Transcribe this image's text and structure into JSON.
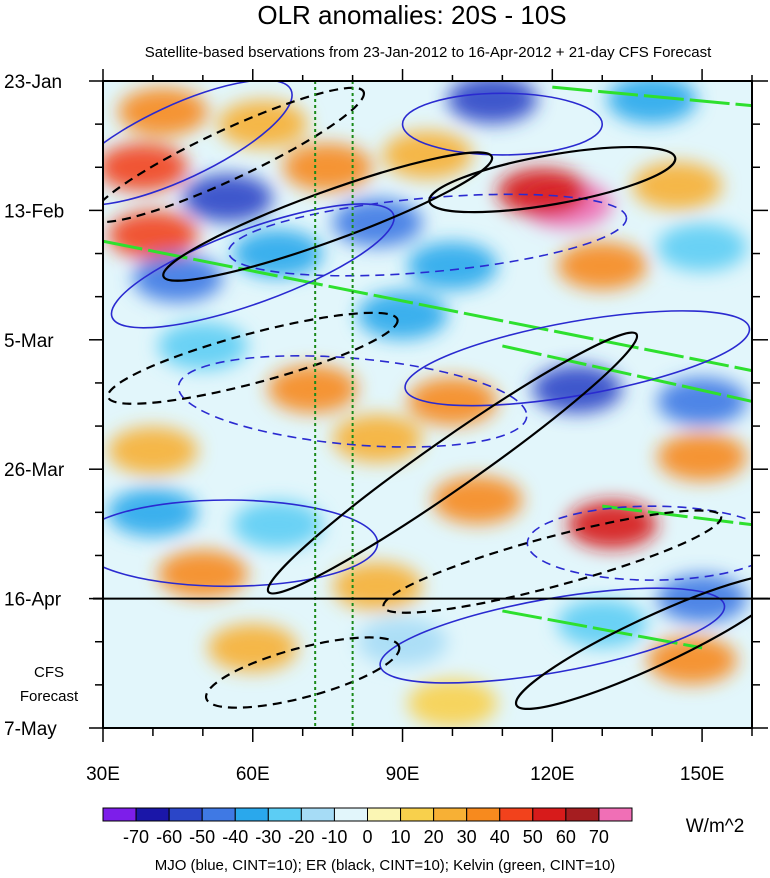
{
  "chart_data": {
    "type": "heatmap",
    "title": "OLR anomalies: 20S - 10S",
    "subtitle": "Satellite-based bservations from 23-Jan-2012 to 16-Apr-2012 + 21-day CFS Forecast",
    "xlim": [
      30,
      160
    ],
    "x_ticks": [
      30,
      60,
      90,
      120,
      150
    ],
    "x_tick_labels": [
      "30E",
      "60E",
      "90E",
      "120E",
      "150E"
    ],
    "y_tick_labels": [
      "23-Jan",
      "13-Feb",
      "5-Mar",
      "26-Mar",
      "16-Apr",
      "7-May"
    ],
    "y_tick_days": [
      0,
      21,
      42,
      63,
      84,
      105
    ],
    "forecast_start_day": 84,
    "forecast_label_line1": "CFS",
    "forecast_label_line2": "Forecast",
    "reference_lines_lon": [
      72.5,
      80
    ],
    "colorbar": {
      "levels": [
        -70,
        -60,
        -50,
        -40,
        -30,
        -20,
        -10,
        0,
        10,
        20,
        30,
        40,
        50,
        60,
        70
      ],
      "labels": [
        "-70",
        "-60",
        "-50",
        "-40",
        "-30",
        "-20",
        "-10",
        "0",
        "10",
        "20",
        "30",
        "40",
        "50",
        "60",
        "70"
      ],
      "colors": [
        "#7d1eea",
        "#1a16a8",
        "#2b46c8",
        "#3f79e4",
        "#2aa8ec",
        "#5ccdf4",
        "#a6dcf6",
        "#e2f6fb",
        "#fbf6b4",
        "#f8d04c",
        "#f7b035",
        "#f78a1e",
        "#f2421c",
        "#d71b1b",
        "#a51d20",
        "#f06fb6"
      ],
      "units": "W/m^2"
    },
    "anomaly_blobs": [
      {
        "lon": 42,
        "day": 5,
        "value": 30
      },
      {
        "lon": 62,
        "day": 7,
        "value": 20
      },
      {
        "lon": 108,
        "day": 3,
        "value": -60
      },
      {
        "lon": 140,
        "day": 3,
        "value": -40
      },
      {
        "lon": 38,
        "day": 14,
        "value": 40
      },
      {
        "lon": 55,
        "day": 19,
        "value": -60
      },
      {
        "lon": 75,
        "day": 14,
        "value": 30
      },
      {
        "lon": 95,
        "day": 12,
        "value": 20
      },
      {
        "lon": 123,
        "day": 20,
        "value": 70
      },
      {
        "lon": 118,
        "day": 18,
        "value": 50
      },
      {
        "lon": 145,
        "day": 17,
        "value": 20
      },
      {
        "lon": 40,
        "day": 25,
        "value": 40
      },
      {
        "lon": 45,
        "day": 32,
        "value": -50
      },
      {
        "lon": 65,
        "day": 28,
        "value": -40
      },
      {
        "lon": 85,
        "day": 23,
        "value": -50
      },
      {
        "lon": 100,
        "day": 30,
        "value": -40
      },
      {
        "lon": 130,
        "day": 30,
        "value": 30
      },
      {
        "lon": 150,
        "day": 27,
        "value": -30
      },
      {
        "lon": 50,
        "day": 43,
        "value": -30
      },
      {
        "lon": 90,
        "day": 38,
        "value": -40
      },
      {
        "lon": 72,
        "day": 50,
        "value": 30
      },
      {
        "lon": 100,
        "day": 52,
        "value": 30
      },
      {
        "lon": 125,
        "day": 50,
        "value": -60
      },
      {
        "lon": 150,
        "day": 52,
        "value": -50
      },
      {
        "lon": 40,
        "day": 60,
        "value": 20
      },
      {
        "lon": 85,
        "day": 58,
        "value": 20
      },
      {
        "lon": 150,
        "day": 61,
        "value": 30
      },
      {
        "lon": 40,
        "day": 70,
        "value": -40
      },
      {
        "lon": 65,
        "day": 72,
        "value": -30
      },
      {
        "lon": 105,
        "day": 68,
        "value": 30
      },
      {
        "lon": 132,
        "day": 72,
        "value": 50
      },
      {
        "lon": 50,
        "day": 80,
        "value": 30
      },
      {
        "lon": 85,
        "day": 82,
        "value": 20
      },
      {
        "lon": 130,
        "day": 88,
        "value": -30
      },
      {
        "lon": 150,
        "day": 84,
        "value": -50
      },
      {
        "lon": 60,
        "day": 92,
        "value": 20
      },
      {
        "lon": 90,
        "day": 91,
        "value": -20
      },
      {
        "lon": 148,
        "day": 94,
        "value": 30
      },
      {
        "lon": 100,
        "day": 101,
        "value": 10
      }
    ],
    "mjo_contours": [
      {
        "lon": 45,
        "day": 10,
        "rx": 25,
        "ry": 6,
        "angle": -25,
        "dashed": false
      },
      {
        "lon": 60,
        "day": 30,
        "rx": 30,
        "ry": 6,
        "angle": -20,
        "dashed": false
      },
      {
        "lon": 110,
        "day": 7,
        "rx": 20,
        "ry": 5,
        "angle": 0,
        "dashed": false
      },
      {
        "lon": 95,
        "day": 25,
        "rx": 40,
        "ry": 6,
        "angle": -5,
        "dashed": true
      },
      {
        "lon": 125,
        "day": 45,
        "rx": 35,
        "ry": 6,
        "angle": -10,
        "dashed": false
      },
      {
        "lon": 80,
        "day": 52,
        "rx": 35,
        "ry": 7,
        "angle": 5,
        "dashed": true
      },
      {
        "lon": 55,
        "day": 75,
        "rx": 30,
        "ry": 7,
        "angle": 0,
        "dashed": false
      },
      {
        "lon": 140,
        "day": 75,
        "rx": 25,
        "ry": 6,
        "angle": 0,
        "dashed": true
      },
      {
        "lon": 120,
        "day": 90,
        "rx": 35,
        "ry": 6,
        "angle": -10,
        "dashed": false
      }
    ],
    "er_contours": [
      {
        "lon": 55,
        "day": 12,
        "rx": 30,
        "ry": 4,
        "angle": -25,
        "dashed": true
      },
      {
        "lon": 75,
        "day": 22,
        "rx": 35,
        "ry": 4,
        "angle": -20,
        "dashed": false
      },
      {
        "lon": 120,
        "day": 16,
        "rx": 25,
        "ry": 4,
        "angle": -10,
        "dashed": false
      },
      {
        "lon": 60,
        "day": 45,
        "rx": 30,
        "ry": 4,
        "angle": -15,
        "dashed": true
      },
      {
        "lon": 100,
        "day": 62,
        "rx": 45,
        "ry": 4,
        "angle": -35,
        "dashed": false
      },
      {
        "lon": 70,
        "day": 96,
        "rx": 20,
        "ry": 4,
        "angle": -15,
        "dashed": true
      },
      {
        "lon": 140,
        "day": 91,
        "rx": 30,
        "ry": 4,
        "angle": -25,
        "dashed": false
      },
      {
        "lon": 120,
        "day": 78,
        "rx": 35,
        "ry": 4,
        "angle": -15,
        "dashed": true
      }
    ],
    "kelvin_segments": [
      {
        "lon1": 120,
        "day1": 1,
        "lon2": 160,
        "day2": 4
      },
      {
        "lon1": 30,
        "day1": 26,
        "lon2": 160,
        "day2": 47
      },
      {
        "lon1": 110,
        "day1": 43,
        "lon2": 160,
        "day2": 52
      },
      {
        "lon1": 130,
        "day1": 69,
        "lon2": 160,
        "day2": 72
      },
      {
        "lon1": 110,
        "day1": 86,
        "lon2": 150,
        "day2": 92
      }
    ],
    "footnote": "MJO (blue, CINT=10); ER (black, CINT=10); Kelvin (green, CINT=10)"
  }
}
